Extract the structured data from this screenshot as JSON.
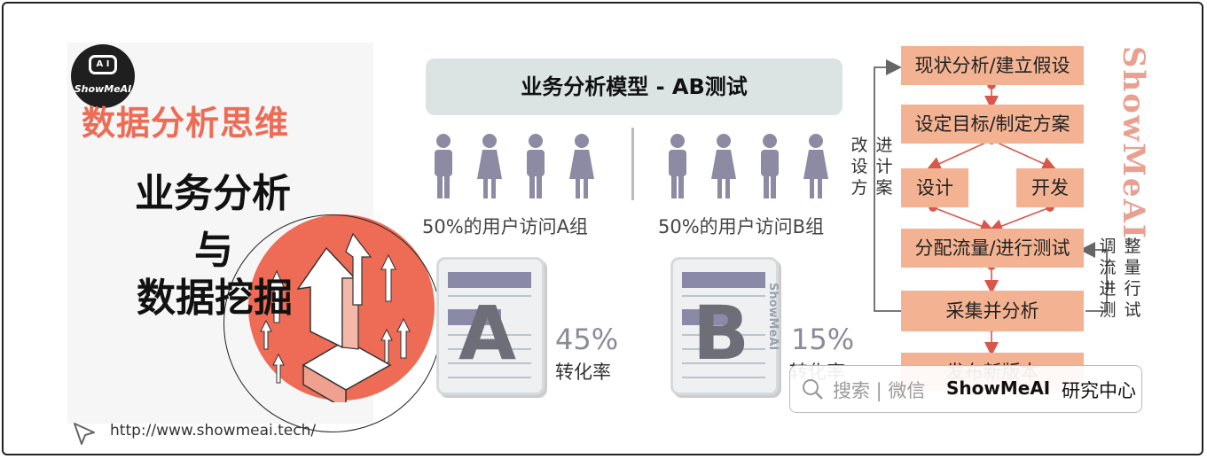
{
  "brand": {
    "logo_text": "ShowMeAI",
    "logo_face": "A I"
  },
  "left": {
    "main_title": "数据分析思维",
    "sub_line1": "业务分析",
    "sub_line2": "与",
    "sub_line3": "数据挖掘",
    "url": "http://www.showmeai.tech/"
  },
  "ab": {
    "title": "业务分析模型 - AB测试",
    "group_a_label": "50%的用户访问A组",
    "group_b_label": "50%的用户访问B组",
    "card_a_letter": "A",
    "card_b_letter": "B",
    "rate_a": "45%",
    "rate_b": "15%",
    "rate_label": "转化率",
    "card_watermark": "ShowMeAI"
  },
  "flow": {
    "steps": [
      "现状分析/建立假设",
      "设定目标/制定方案",
      "设计",
      "开发",
      "分配流量/进行测试",
      "采集并分析",
      "发布新版本"
    ],
    "loop_left": [
      "改",
      "设",
      "方",
      "进",
      "计",
      "案"
    ],
    "loop_right": [
      "调",
      "流",
      "进",
      "测",
      "整",
      "量",
      "行",
      "试"
    ]
  },
  "watermark": "ShowMeAI",
  "search": {
    "hint": "搜索 | 微信",
    "brand": "ShowMeAI",
    "center": "研究中心"
  },
  "colors": {
    "accent": "#ee6b55",
    "flow_box": "#f3b392",
    "people": "#8d8aa3",
    "arrow": "#d9574a"
  }
}
